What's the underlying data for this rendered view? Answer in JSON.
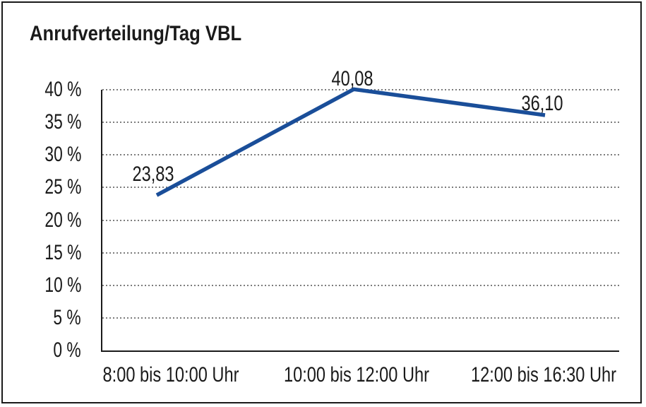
{
  "frame": {
    "background": "#ffffff",
    "border_color": "#1a1a1a"
  },
  "chart_data": {
    "type": "line",
    "title": "Anrufverteilung/Tag VBL",
    "categories": [
      "8:00 bis 10:00 Uhr",
      "10:00 bis 12:00 Uhr",
      "12:00 bis 16:30 Uhr"
    ],
    "values": [
      23.83,
      40.08,
      36.1
    ],
    "data_point_labels": [
      "23,83",
      "40,08",
      "36,10"
    ],
    "xlabel": "",
    "ylabel": "",
    "ylim": [
      0,
      40
    ],
    "y_tick_step": 5,
    "y_tick_labels_top_to_bottom": [
      "40 %",
      "35 %",
      "30 %",
      "25 %",
      "20 %",
      "15 %",
      "10 %",
      "5 %",
      "0 %"
    ],
    "grid": {
      "horizontal": true,
      "vertical": false,
      "style": "dotted"
    },
    "legend_position": "none",
    "colors": {
      "line": "#1a4e99",
      "text": "#1a1a1a",
      "grid": "#7d7d7d",
      "axis": "#1a1a1a",
      "background": "#ffffff"
    }
  }
}
